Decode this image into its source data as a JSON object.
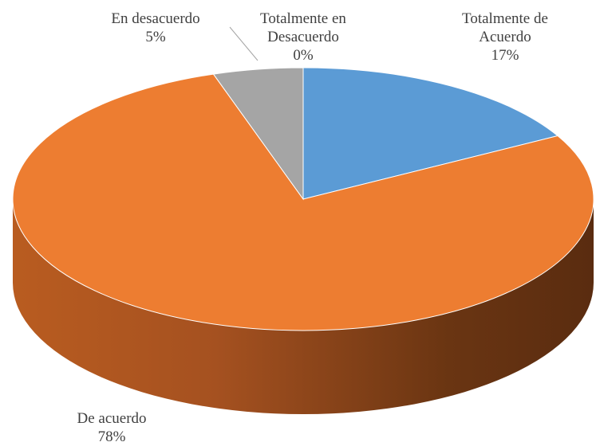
{
  "chart_data": {
    "type": "pie",
    "categories": [
      "Totalmente de Acuerdo",
      "De acuerdo",
      "En desacuerdo",
      "Totalmente en Desacuerdo"
    ],
    "values": [
      17,
      78,
      5,
      0
    ],
    "value_labels": [
      "17%",
      "78%",
      "5%",
      "0%"
    ],
    "colors": [
      "#5b9bd5",
      "#ed7d31",
      "#a5a5a5",
      "#ffc000"
    ]
  }
}
